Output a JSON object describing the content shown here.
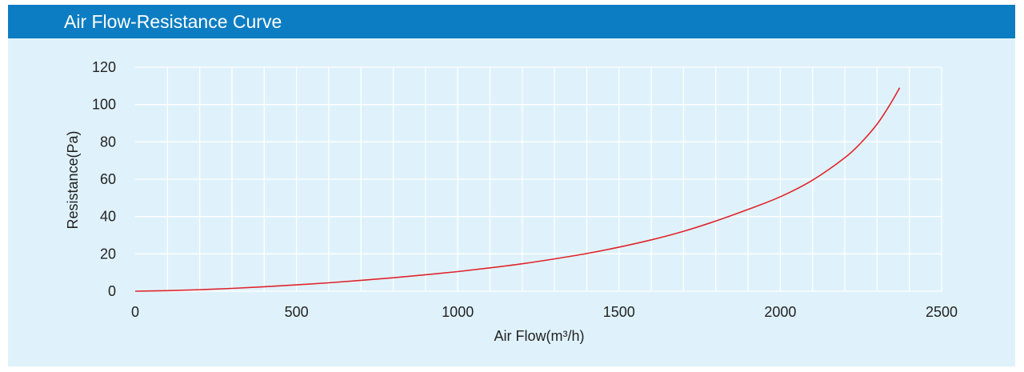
{
  "header": {
    "title": "Air Flow-Resistance Curve"
  },
  "colors": {
    "header_bg": "#0c7dc2",
    "plot_bg": "#dff2fb",
    "grid": "#ffffff",
    "curve": "#e0242b"
  },
  "chart_data": {
    "type": "line",
    "title": "",
    "xlabel": "Air Flow(m³/h)",
    "ylabel": "Resistance(Pa)",
    "xlim": [
      0,
      2500
    ],
    "ylim": [
      0,
      120
    ],
    "x_ticks": [
      0,
      500,
      1000,
      1500,
      2000,
      2500
    ],
    "y_ticks": [
      0,
      20,
      40,
      60,
      80,
      100,
      120
    ],
    "x_tick_labels": [
      "0",
      "500",
      "1000",
      "1500",
      "2000",
      "2500"
    ],
    "y_tick_labels": [
      "0",
      "20",
      "40",
      "60",
      "80",
      "100",
      "120"
    ],
    "grid": true,
    "legend": "none",
    "series": [
      {
        "color": "#e0242b",
        "x": [
          0,
          100,
          200,
          300,
          400,
          500,
          600,
          700,
          800,
          900,
          1000,
          1100,
          1200,
          1300,
          1400,
          1500,
          1600,
          1700,
          1800,
          1900,
          2000,
          2100,
          2200,
          2250,
          2300,
          2340,
          2370
        ],
        "y": [
          0,
          0.3,
          0.8,
          1.5,
          2.4,
          3.4,
          4.5,
          5.8,
          7.2,
          8.8,
          10.5,
          12.5,
          14.7,
          17.3,
          20.2,
          23.6,
          27.5,
          32.1,
          37.6,
          43.8,
          50.6,
          59.5,
          71.5,
          79.5,
          89.5,
          100,
          109
        ]
      }
    ]
  }
}
